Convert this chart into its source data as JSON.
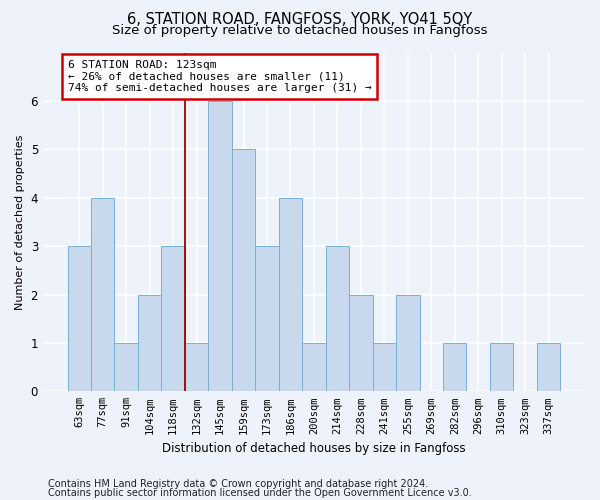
{
  "title": "6, STATION ROAD, FANGFOSS, YORK, YO41 5QY",
  "subtitle": "Size of property relative to detached houses in Fangfoss",
  "xlabel": "Distribution of detached houses by size in Fangfoss",
  "ylabel": "Number of detached properties",
  "categories": [
    "63sqm",
    "77sqm",
    "91sqm",
    "104sqm",
    "118sqm",
    "132sqm",
    "145sqm",
    "159sqm",
    "173sqm",
    "186sqm",
    "200sqm",
    "214sqm",
    "228sqm",
    "241sqm",
    "255sqm",
    "269sqm",
    "282sqm",
    "296sqm",
    "310sqm",
    "323sqm",
    "337sqm"
  ],
  "values": [
    3,
    4,
    1,
    2,
    3,
    1,
    6,
    5,
    3,
    4,
    1,
    3,
    2,
    1,
    2,
    0,
    1,
    0,
    1,
    0,
    1
  ],
  "bar_color": "#c9d9ed",
  "bar_edge_color": "#7bafd4",
  "vline_x_index": 4,
  "annotation_title": "6 STATION ROAD: 123sqm",
  "annotation_line1": "← 26% of detached houses are smaller (11)",
  "annotation_line2": "74% of semi-detached houses are larger (31) →",
  "annotation_box_facecolor": "#ffffff",
  "annotation_box_edgecolor": "#cc0000",
  "vline_color": "#9b0000",
  "ylim": [
    0,
    7
  ],
  "yticks": [
    0,
    1,
    2,
    3,
    4,
    5,
    6,
    7
  ],
  "footer_line1": "Contains HM Land Registry data © Crown copyright and database right 2024.",
  "footer_line2": "Contains public sector information licensed under the Open Government Licence v3.0.",
  "bg_color": "#eef2fa",
  "plot_bg_color": "#eef2fa",
  "grid_color": "#ffffff",
  "title_fontsize": 10.5,
  "subtitle_fontsize": 9.5,
  "xlabel_fontsize": 8.5,
  "ylabel_fontsize": 8,
  "tick_fontsize": 7.5,
  "footer_fontsize": 7,
  "annotation_fontsize": 8
}
